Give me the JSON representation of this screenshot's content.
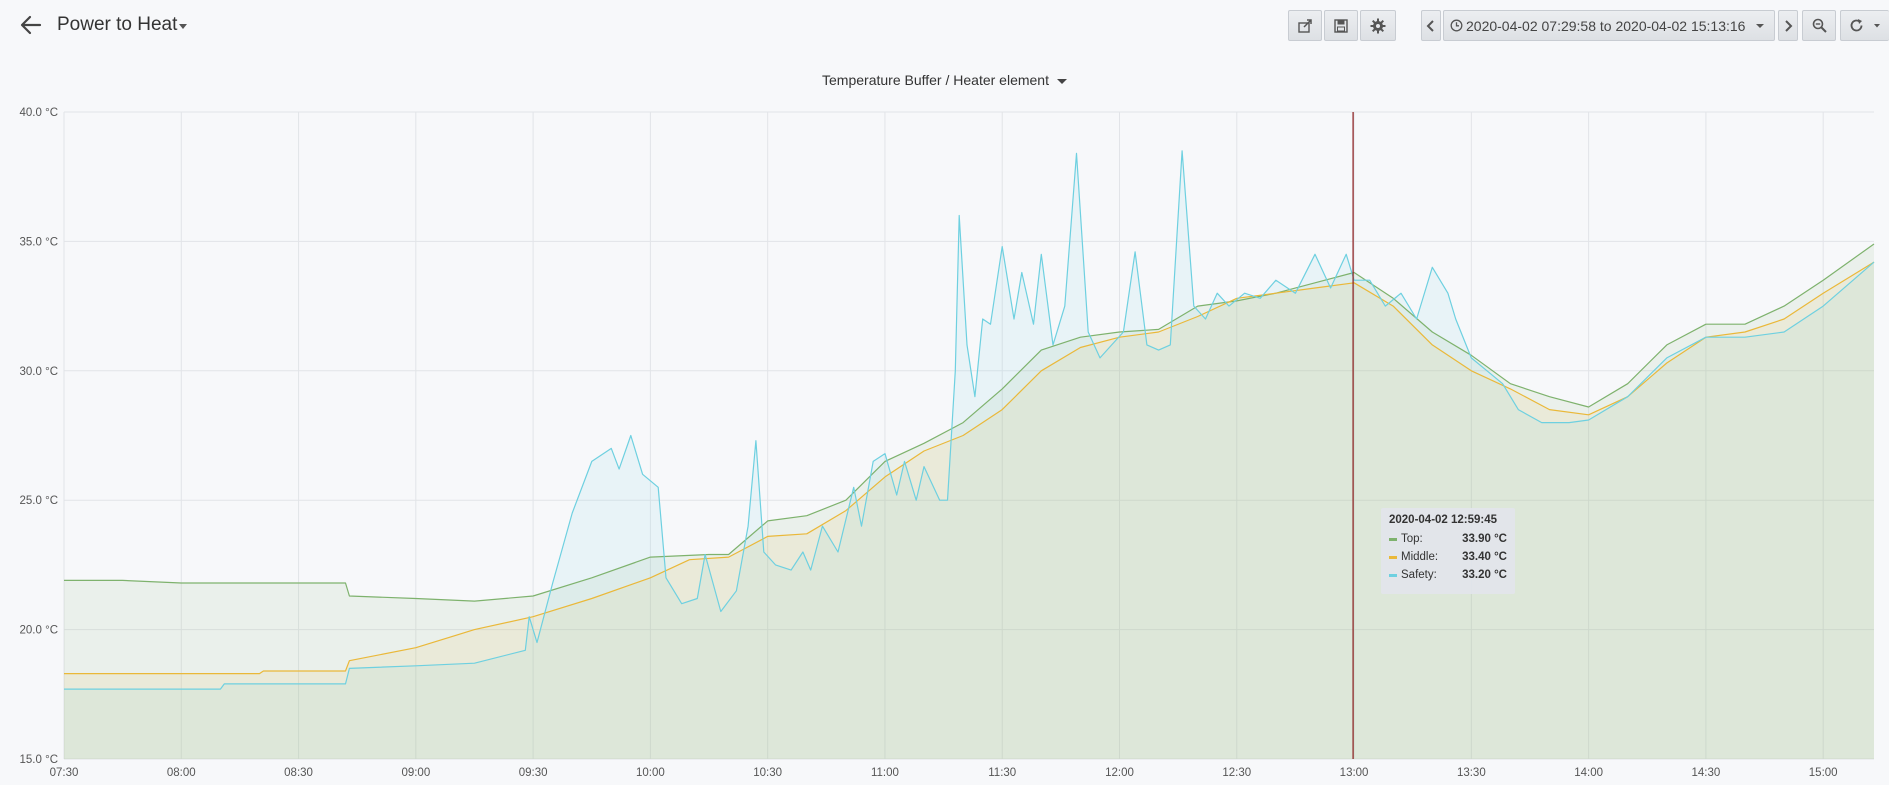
{
  "dashboard": {
    "title": "Power to Heat",
    "time_range": "2020-04-02 07:29:58 to 2020-04-02 15:13:16"
  },
  "icons": {
    "back": "arrow-left-icon",
    "share": "share-icon",
    "save": "save-icon",
    "settings": "gear-icon",
    "prev": "chevron-left-icon",
    "clock": "clock-icon",
    "next": "chevron-right-icon",
    "zoom": "zoom-out-icon",
    "refresh": "refresh-icon"
  },
  "panel": {
    "title": "Temperature Buffer / Heater element"
  },
  "tooltip": {
    "time": "2020-04-02 12:59:45",
    "rows": [
      {
        "label": "Top:",
        "value": "33.90 °C"
      },
      {
        "label": "Middle:",
        "value": "33.40 °C"
      },
      {
        "label": "Safety:",
        "value": "33.20 °C"
      }
    ]
  },
  "chart_data": {
    "type": "area",
    "title": "Temperature Buffer / Heater element",
    "x_start": "07:30",
    "x_end": "15:13",
    "ylim": [
      15,
      40
    ],
    "y_unit": "°C",
    "y_ticks": [
      "15.0 °C",
      "20.0 °C",
      "25.0 °C",
      "30.0 °C",
      "35.0 °C",
      "40.0 °C"
    ],
    "x_ticks": [
      "07:30",
      "08:00",
      "08:30",
      "09:00",
      "09:30",
      "10:00",
      "10:30",
      "11:00",
      "11:30",
      "12:00",
      "12:30",
      "13:00",
      "13:30",
      "14:00",
      "14:30",
      "15:00"
    ],
    "crosshair_time": "12:59:45",
    "grid": true,
    "colors": {
      "Top": "#7eb26d",
      "Middle": "#eab839",
      "Safety": "#6ed0e0",
      "crosshair": "#8b1c1c"
    },
    "series": [
      {
        "name": "Top",
        "points": [
          [
            "07:30",
            21.9
          ],
          [
            "07:45",
            21.9
          ],
          [
            "08:00",
            21.8
          ],
          [
            "08:15",
            21.8
          ],
          [
            "08:30",
            21.8
          ],
          [
            "08:42",
            21.8
          ],
          [
            "08:43",
            21.3
          ],
          [
            "09:00",
            21.2
          ],
          [
            "09:15",
            21.1
          ],
          [
            "09:30",
            21.3
          ],
          [
            "09:45",
            22.0
          ],
          [
            "10:00",
            22.8
          ],
          [
            "10:15",
            22.9
          ],
          [
            "10:20",
            22.9
          ],
          [
            "10:30",
            24.2
          ],
          [
            "10:40",
            24.4
          ],
          [
            "10:50",
            25.0
          ],
          [
            "11:00",
            26.5
          ],
          [
            "11:10",
            27.2
          ],
          [
            "11:20",
            28.0
          ],
          [
            "11:30",
            29.3
          ],
          [
            "11:40",
            30.8
          ],
          [
            "11:50",
            31.3
          ],
          [
            "12:00",
            31.5
          ],
          [
            "12:10",
            31.6
          ],
          [
            "12:20",
            32.5
          ],
          [
            "12:30",
            32.7
          ],
          [
            "12:40",
            33.0
          ],
          [
            "12:50",
            33.4
          ],
          [
            "13:00",
            33.8
          ],
          [
            "13:10",
            32.8
          ],
          [
            "13:20",
            31.5
          ],
          [
            "13:30",
            30.6
          ],
          [
            "13:40",
            29.5
          ],
          [
            "13:50",
            29.0
          ],
          [
            "14:00",
            28.6
          ],
          [
            "14:10",
            29.5
          ],
          [
            "14:20",
            31.0
          ],
          [
            "14:30",
            31.8
          ],
          [
            "14:40",
            31.8
          ],
          [
            "14:50",
            32.5
          ],
          [
            "15:00",
            33.5
          ],
          [
            "15:13",
            34.9
          ]
        ]
      },
      {
        "name": "Middle",
        "points": [
          [
            "07:30",
            18.3
          ],
          [
            "08:00",
            18.3
          ],
          [
            "08:20",
            18.3
          ],
          [
            "08:21",
            18.4
          ],
          [
            "08:42",
            18.4
          ],
          [
            "08:43",
            18.8
          ],
          [
            "09:00",
            19.3
          ],
          [
            "09:15",
            20.0
          ],
          [
            "09:30",
            20.5
          ],
          [
            "09:45",
            21.2
          ],
          [
            "10:00",
            22.0
          ],
          [
            "10:10",
            22.7
          ],
          [
            "10:20",
            22.8
          ],
          [
            "10:30",
            23.6
          ],
          [
            "10:40",
            23.7
          ],
          [
            "10:50",
            24.6
          ],
          [
            "11:00",
            25.9
          ],
          [
            "11:10",
            26.9
          ],
          [
            "11:20",
            27.5
          ],
          [
            "11:30",
            28.5
          ],
          [
            "11:40",
            30.0
          ],
          [
            "11:50",
            30.9
          ],
          [
            "12:00",
            31.3
          ],
          [
            "12:10",
            31.5
          ],
          [
            "12:20",
            32.1
          ],
          [
            "12:30",
            32.8
          ],
          [
            "12:40",
            33.0
          ],
          [
            "12:50",
            33.2
          ],
          [
            "13:00",
            33.4
          ],
          [
            "13:10",
            32.5
          ],
          [
            "13:20",
            31.0
          ],
          [
            "13:30",
            30.0
          ],
          [
            "13:40",
            29.3
          ],
          [
            "13:50",
            28.5
          ],
          [
            "14:00",
            28.3
          ],
          [
            "14:10",
            29.0
          ],
          [
            "14:20",
            30.3
          ],
          [
            "14:30",
            31.3
          ],
          [
            "14:40",
            31.5
          ],
          [
            "14:50",
            32.0
          ],
          [
            "15:00",
            33.0
          ],
          [
            "15:13",
            34.2
          ]
        ]
      },
      {
        "name": "Safety",
        "points": [
          [
            "07:30",
            17.7
          ],
          [
            "08:00",
            17.7
          ],
          [
            "08:10",
            17.7
          ],
          [
            "08:11",
            17.9
          ],
          [
            "08:42",
            17.9
          ],
          [
            "08:43",
            18.5
          ],
          [
            "09:00",
            18.6
          ],
          [
            "09:15",
            18.7
          ],
          [
            "09:28",
            19.2
          ],
          [
            "09:29",
            20.5
          ],
          [
            "09:31",
            19.5
          ],
          [
            "09:35",
            21.8
          ],
          [
            "09:40",
            24.5
          ],
          [
            "09:45",
            26.5
          ],
          [
            "09:50",
            27.0
          ],
          [
            "09:52",
            26.2
          ],
          [
            "09:55",
            27.5
          ],
          [
            "09:58",
            26.0
          ],
          [
            "10:02",
            25.5
          ],
          [
            "10:04",
            22.0
          ],
          [
            "10:08",
            21.0
          ],
          [
            "10:12",
            21.2
          ],
          [
            "10:14",
            22.9
          ],
          [
            "10:18",
            20.7
          ],
          [
            "10:22",
            21.5
          ],
          [
            "10:25",
            24.0
          ],
          [
            "10:27",
            27.3
          ],
          [
            "10:29",
            23.0
          ],
          [
            "10:32",
            22.5
          ],
          [
            "10:36",
            22.3
          ],
          [
            "10:39",
            23.0
          ],
          [
            "10:41",
            22.3
          ],
          [
            "10:44",
            24.0
          ],
          [
            "10:48",
            23.0
          ],
          [
            "10:52",
            25.5
          ],
          [
            "10:54",
            24.0
          ],
          [
            "10:57",
            26.5
          ],
          [
            "11:00",
            26.8
          ],
          [
            "11:03",
            25.2
          ],
          [
            "11:05",
            26.5
          ],
          [
            "11:08",
            25.0
          ],
          [
            "11:10",
            26.3
          ],
          [
            "11:14",
            25.0
          ],
          [
            "11:16",
            25.0
          ],
          [
            "11:18",
            30.0
          ],
          [
            "11:19",
            36.0
          ],
          [
            "11:21",
            31.0
          ],
          [
            "11:23",
            29.0
          ],
          [
            "11:25",
            32.0
          ],
          [
            "11:27",
            31.8
          ],
          [
            "11:30",
            34.8
          ],
          [
            "11:33",
            32.0
          ],
          [
            "11:35",
            33.8
          ],
          [
            "11:38",
            31.8
          ],
          [
            "11:40",
            34.5
          ],
          [
            "11:43",
            31.0
          ],
          [
            "11:46",
            32.5
          ],
          [
            "11:49",
            38.4
          ],
          [
            "11:52",
            31.5
          ],
          [
            "11:55",
            30.5
          ],
          [
            "11:58",
            31.0
          ],
          [
            "12:01",
            31.5
          ],
          [
            "12:04",
            34.6
          ],
          [
            "12:07",
            31.0
          ],
          [
            "12:10",
            30.8
          ],
          [
            "12:13",
            31.0
          ],
          [
            "12:16",
            38.5
          ],
          [
            "12:19",
            32.5
          ],
          [
            "12:22",
            32.0
          ],
          [
            "12:25",
            33.0
          ],
          [
            "12:28",
            32.5
          ],
          [
            "12:32",
            33.0
          ],
          [
            "12:36",
            32.8
          ],
          [
            "12:40",
            33.5
          ],
          [
            "12:45",
            33.0
          ],
          [
            "12:50",
            34.5
          ],
          [
            "12:54",
            33.2
          ],
          [
            "12:58",
            34.5
          ],
          [
            "13:00",
            33.5
          ],
          [
            "13:04",
            33.5
          ],
          [
            "13:08",
            32.5
          ],
          [
            "13:12",
            33.0
          ],
          [
            "13:16",
            32.0
          ],
          [
            "13:20",
            34.0
          ],
          [
            "13:24",
            33.0
          ],
          [
            "13:26",
            32.0
          ],
          [
            "13:30",
            30.5
          ],
          [
            "13:34",
            30.0
          ],
          [
            "13:38",
            29.5
          ],
          [
            "13:42",
            28.5
          ],
          [
            "13:48",
            28.0
          ],
          [
            "13:55",
            28.0
          ],
          [
            "14:00",
            28.1
          ],
          [
            "14:10",
            29.0
          ],
          [
            "14:20",
            30.5
          ],
          [
            "14:30",
            31.3
          ],
          [
            "14:40",
            31.3
          ],
          [
            "14:50",
            31.5
          ],
          [
            "15:00",
            32.5
          ],
          [
            "15:13",
            34.2
          ]
        ]
      }
    ]
  }
}
